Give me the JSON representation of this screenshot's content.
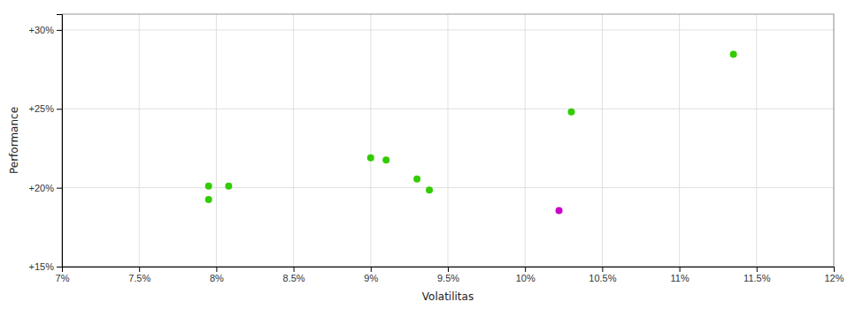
{
  "chart_data": {
    "type": "scatter",
    "xlabel": "Volatilitas",
    "ylabel": "Performance",
    "xlim": [
      0.07,
      0.12
    ],
    "ylim": [
      0.15,
      0.31
    ],
    "xticks": [
      {
        "value": 0.07,
        "label": "7%"
      },
      {
        "value": 0.075,
        "label": "7.5%"
      },
      {
        "value": 0.08,
        "label": "8%"
      },
      {
        "value": 0.085,
        "label": "8.5%"
      },
      {
        "value": 0.09,
        "label": "9%"
      },
      {
        "value": 0.095,
        "label": "9.5%"
      },
      {
        "value": 0.1,
        "label": "10%"
      },
      {
        "value": 0.105,
        "label": "10.5%"
      },
      {
        "value": 0.11,
        "label": "11%"
      },
      {
        "value": 0.115,
        "label": "11.5%"
      },
      {
        "value": 0.12,
        "label": "12%"
      }
    ],
    "yticks": [
      {
        "value": 0.15,
        "label": "+15%"
      },
      {
        "value": 0.2,
        "label": "+20%"
      },
      {
        "value": 0.25,
        "label": "+25%"
      },
      {
        "value": 0.3,
        "label": "+30%"
      }
    ],
    "grid": true,
    "series": [
      {
        "color": "#33cc00",
        "x": [
          0.0795,
          0.0808,
          0.0795,
          0.09,
          0.091,
          0.093,
          0.0938,
          0.103,
          0.1135
        ],
        "values": [
          0.201,
          0.201,
          0.1925,
          0.219,
          0.2175,
          0.2055,
          0.1985,
          0.248,
          0.2845
        ]
      },
      {
        "color": "#cc00cc",
        "x": [
          0.1022
        ],
        "values": [
          0.1855
        ]
      }
    ]
  }
}
